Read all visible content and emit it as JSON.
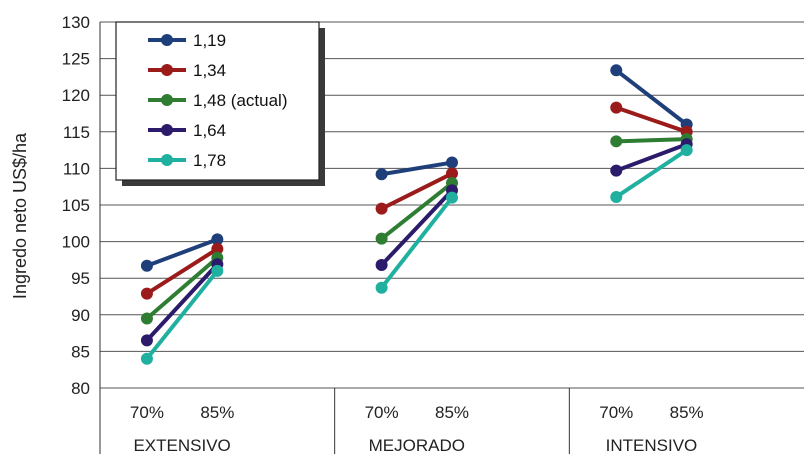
{
  "chart_data": {
    "type": "line",
    "ylabel": "Ingredo neto US$/ha",
    "ylim": [
      80,
      130
    ],
    "yticks": [
      "80",
      "85",
      "90",
      "95",
      "100",
      "105",
      "110",
      "115",
      "120",
      "125",
      "130"
    ],
    "grid": true,
    "legend_position": "top-left",
    "groups": [
      {
        "label": "EXTENSIVO",
        "categories": [
          "70%",
          "85%"
        ]
      },
      {
        "label": "MEJORADO",
        "categories": [
          "70%",
          "85%"
        ]
      },
      {
        "label": "INTENSIVO",
        "categories": [
          "70%",
          "85%"
        ]
      }
    ],
    "series": [
      {
        "name": "1,19",
        "color": "#1f3f7a",
        "values": [
          [
            96.7,
            100.3
          ],
          [
            109.2,
            110.8
          ],
          [
            123.4,
            116.0
          ]
        ]
      },
      {
        "name": "1,34",
        "color": "#9b1b1b",
        "values": [
          [
            92.9,
            99.0
          ],
          [
            104.5,
            109.3
          ],
          [
            118.3,
            115.0
          ]
        ]
      },
      {
        "name": "1,48 (actual)",
        "color": "#2e7d32",
        "values": [
          [
            89.5,
            97.8
          ],
          [
            100.4,
            108.0
          ],
          [
            113.7,
            114.0
          ]
        ]
      },
      {
        "name": "1,64",
        "color": "#2c1a6b",
        "values": [
          [
            86.5,
            96.9
          ],
          [
            96.8,
            107.0
          ],
          [
            109.7,
            113.3
          ]
        ]
      },
      {
        "name": "1,78",
        "color": "#20b0a0",
        "values": [
          [
            84.0,
            96.0
          ],
          [
            93.7,
            106.0
          ],
          [
            106.1,
            112.5
          ]
        ]
      }
    ]
  }
}
